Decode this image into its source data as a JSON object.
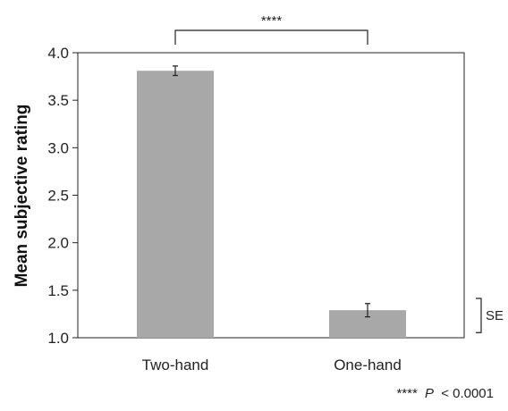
{
  "chart_data": {
    "type": "bar",
    "categories": [
      "Two-hand",
      "One-hand"
    ],
    "values": [
      3.81,
      1.29
    ],
    "errors": [
      0.05,
      0.07
    ],
    "ylabel": "Mean subjective rating",
    "ylim": [
      1.0,
      4.0
    ],
    "yticks": [
      "1.0",
      "1.5",
      "2.0",
      "2.5",
      "3.0",
      "3.5",
      "4.0"
    ],
    "bar_color": "#a8a8a8",
    "grid": false,
    "significance": {
      "between": [
        "Two-hand",
        "One-hand"
      ],
      "label": "****"
    },
    "se_scale_label": "SE",
    "footnote": {
      "stars": "****",
      "p": "P",
      "threshold": "< 0.0001"
    }
  }
}
